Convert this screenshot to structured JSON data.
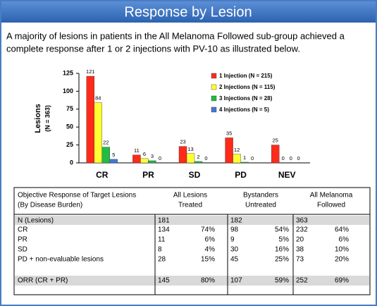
{
  "header": {
    "title": "Response by Lesion"
  },
  "paragraph": {
    "lines": [
      "A majority of lesions in patients in the All Melanoma Followed sub-group achieved a",
      "complete response after 1 or 2 injections with PV-10 as illustrated below."
    ]
  },
  "chart_data": {
    "type": "bar",
    "y_label": "Lesions",
    "y_sublabel": "(N = 363)",
    "categories": [
      "CR",
      "PR",
      "SD",
      "PD",
      "NEV"
    ],
    "series": [
      {
        "name": "1 Injection (N = 215)",
        "color": "#ff2a1a",
        "values": [
          121,
          11,
          23,
          35,
          25
        ]
      },
      {
        "name": "2 Injections (N = 115)",
        "color": "#ffff33",
        "values": [
          84,
          6,
          13,
          12,
          0
        ]
      },
      {
        "name": "3 Injections (N = 28)",
        "color": "#22bb44",
        "values": [
          22,
          3,
          2,
          1,
          0
        ]
      },
      {
        "name": "4 Injections (N = 5)",
        "color": "#4477dd",
        "values": [
          5,
          0,
          0,
          0,
          0
        ]
      }
    ],
    "ylim": [
      0,
      125
    ],
    "yticks": [
      0,
      25,
      50,
      75,
      100,
      125
    ],
    "grid": false,
    "legend": "top-right"
  },
  "table": {
    "header": [
      [
        "Objective Response of Target Lesions",
        "(By Disease Burden)"
      ],
      [
        "All Lesions",
        "Treated"
      ],
      [
        "Bystanders",
        "Untreated"
      ],
      [
        "All Melanoma",
        "Followed"
      ]
    ],
    "rows": [
      {
        "label": "N (Lesions)",
        "cells": [
          "181",
          "182",
          "363"
        ]
      },
      {
        "label": "CR",
        "cells": [
          "134",
          "74%",
          "98",
          "54%",
          "232",
          "64%"
        ]
      },
      {
        "label": "PR",
        "cells": [
          "11",
          "6%",
          "9",
          "5%",
          "20",
          "6%"
        ]
      },
      {
        "label": "SD",
        "cells": [
          "8",
          "4%",
          "30",
          "16%",
          "38",
          "10%"
        ]
      },
      {
        "label": "PD + non-evaluable lesions",
        "cells": [
          "28",
          "15%",
          "45",
          "25%",
          "73",
          "20%"
        ]
      },
      {
        "label": "ORR (CR + PR)",
        "cells": [
          "145",
          "80%",
          "107",
          "59%",
          "252",
          "69%"
        ]
      }
    ]
  }
}
